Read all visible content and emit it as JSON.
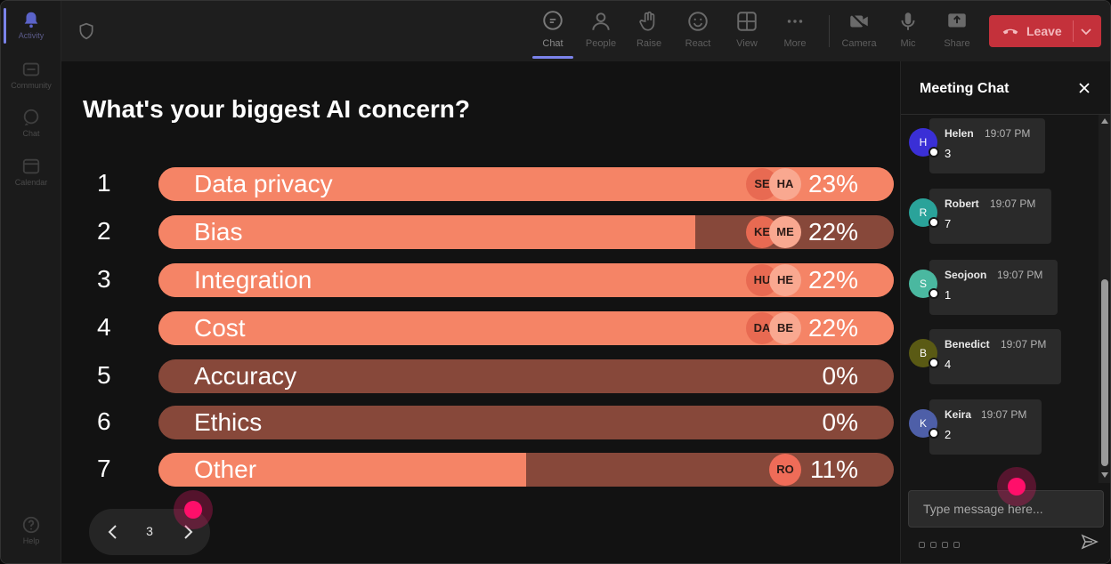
{
  "rail": {
    "items": [
      {
        "label": "Activity",
        "icon": "bell-icon"
      },
      {
        "label": "Community",
        "icon": "community-icon"
      },
      {
        "label": "Chat",
        "icon": "chat-icon"
      },
      {
        "label": "Calendar",
        "icon": "calendar-icon"
      }
    ],
    "help_label": "Help"
  },
  "toolbar": {
    "chat": "Chat",
    "people": "People",
    "raise": "Raise",
    "react": "React",
    "view": "View",
    "more": "More",
    "camera": "Camera",
    "mic": "Mic",
    "share": "Share",
    "leave": "Leave"
  },
  "poll": {
    "title": "What's your biggest AI concern?",
    "options": [
      {
        "num": "1",
        "label": "Data privacy",
        "percent": "23%",
        "fill": 1.0,
        "voters": [
          "SE",
          "HA"
        ]
      },
      {
        "num": "2",
        "label": "Bias",
        "percent": "22%",
        "fill": 0.73,
        "voters": [
          "KE",
          "ME"
        ]
      },
      {
        "num": "3",
        "label": "Integration",
        "percent": "22%",
        "fill": 1.0,
        "voters": [
          "HU",
          "HE"
        ]
      },
      {
        "num": "4",
        "label": "Cost",
        "percent": "22%",
        "fill": 1.0,
        "voters": [
          "DA",
          "BE"
        ]
      },
      {
        "num": "5",
        "label": "Accuracy",
        "percent": "0%",
        "fill": 0.0,
        "voters": []
      },
      {
        "num": "6",
        "label": "Ethics",
        "percent": "0%",
        "fill": 0.0,
        "voters": []
      },
      {
        "num": "7",
        "label": "Other",
        "percent": "11%",
        "fill": 0.5,
        "voters": [
          "RO"
        ]
      }
    ],
    "page": "3"
  },
  "chat": {
    "title": "Meeting Chat",
    "messages": [
      {
        "initial": "H",
        "sender": "Helen",
        "time": "19:07 PM",
        "body": "3",
        "color": "#3a2fd6"
      },
      {
        "initial": "R",
        "sender": "Robert",
        "time": "19:07 PM",
        "body": "7",
        "color": "#2aa39a"
      },
      {
        "initial": "S",
        "sender": "Seojoon",
        "time": "19:07 PM",
        "body": "1",
        "color": "#4ab8a0"
      },
      {
        "initial": "B",
        "sender": "Benedict",
        "time": "19:07 PM",
        "body": "4",
        "color": "#5a5a14"
      },
      {
        "initial": "K",
        "sender": "Keira",
        "time": "19:07 PM",
        "body": "2",
        "color": "#4e5fa8"
      }
    ],
    "input_placeholder": "Type message here..."
  }
}
